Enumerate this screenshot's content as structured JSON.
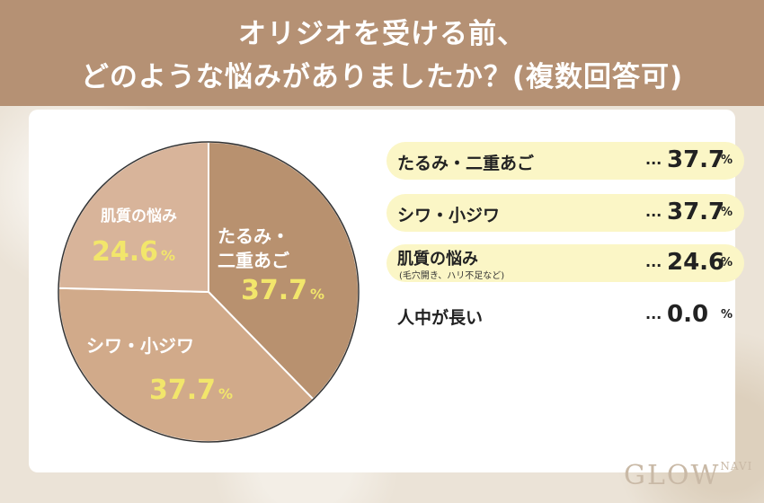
{
  "header": {
    "line1": "オリジオを受ける前、",
    "line2": "どのような悩みがありましたか？(複数回答可)"
  },
  "chart_data": {
    "type": "pie",
    "unit": "%",
    "slices": [
      {
        "label": "たるみ・二重あご",
        "value": 37.7,
        "color": "#b8916f"
      },
      {
        "label": "シワ・小ジワ",
        "value": 37.7,
        "color": "#d1aa8a"
      },
      {
        "label": "肌質の悩み",
        "value": 24.6,
        "color": "#d8b49a"
      },
      {
        "label": "人中が長い",
        "value": 0.0,
        "color": "#e8d8c8"
      }
    ],
    "pie_labels": [
      {
        "name_line1": "たるみ・",
        "name_line2": "二重あご",
        "pct": "37.7",
        "name_color": "#ffffff"
      },
      {
        "name_line1": "シワ・小ジワ",
        "name_line2": "",
        "pct": "37.7",
        "name_color": "#ffffff"
      },
      {
        "name_line1": "肌質の悩み",
        "name_line2": "",
        "pct": "24.6",
        "name_color": "#ffffff"
      }
    ]
  },
  "legend": [
    {
      "name": "たるみ・二重あご",
      "sub": "",
      "dots": "...",
      "value": "37.7",
      "unit": "%",
      "highlight": true
    },
    {
      "name": "シワ・小ジワ",
      "sub": "",
      "dots": "...",
      "value": "37.7",
      "unit": "%",
      "highlight": true
    },
    {
      "name": "肌質の悩み",
      "sub": "(毛穴開き、ハリ不足など)",
      "dots": "...",
      "value": "24.6",
      "unit": "%",
      "highlight": true
    },
    {
      "name": "人中が長い",
      "sub": "",
      "dots": "...",
      "value": "0.0",
      "unit": "%",
      "highlight": false
    }
  ],
  "logo": {
    "text": "GLOW",
    "small": "NAVI"
  }
}
